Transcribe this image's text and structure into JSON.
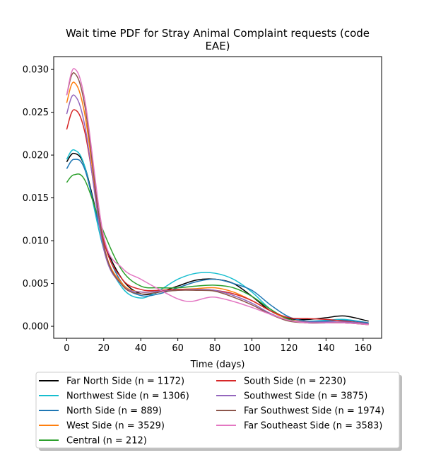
{
  "chart_data": {
    "type": "line",
    "title_lines": [
      "Wait time PDF for Stray Animal Complaint  requests (code",
      "EAE)"
    ],
    "xlabel": "Time (days)",
    "ylabel": "",
    "xlim": [
      -7,
      170
    ],
    "ylim": [
      -0.0014,
      0.0315
    ],
    "xticks": [
      0,
      20,
      40,
      60,
      80,
      100,
      120,
      140,
      160
    ],
    "yticks": [
      0.0,
      0.005,
      0.01,
      0.015,
      0.02,
      0.025,
      0.03
    ],
    "ytick_labels": [
      "0.000",
      "0.005",
      "0.010",
      "0.015",
      "0.020",
      "0.025",
      "0.030"
    ],
    "legend_placement": "below plot, two columns",
    "series": [
      {
        "name": "Far North Side (n = 1172)",
        "color": "#000000",
        "x": [
          0,
          4,
          10,
          20,
          30,
          40,
          50,
          60,
          70,
          80,
          90,
          100,
          110,
          120,
          130,
          140,
          150,
          163
        ],
        "y": [
          0.0192,
          0.0202,
          0.0185,
          0.01,
          0.0055,
          0.0038,
          0.004,
          0.0047,
          0.0054,
          0.0055,
          0.005,
          0.0035,
          0.0018,
          0.0009,
          0.0008,
          0.001,
          0.0012,
          0.0006
        ]
      },
      {
        "name": "Northwest Side (n = 1306)",
        "color": "#17becf",
        "x": [
          0,
          4,
          10,
          20,
          30,
          40,
          50,
          60,
          70,
          80,
          90,
          100,
          110,
          120,
          130,
          140,
          150,
          163
        ],
        "y": [
          0.0195,
          0.0206,
          0.0185,
          0.009,
          0.0045,
          0.0033,
          0.0042,
          0.0055,
          0.0062,
          0.0062,
          0.0055,
          0.004,
          0.002,
          0.0008,
          0.0006,
          0.0007,
          0.0008,
          0.0004
        ]
      },
      {
        "name": "North Side (n = 889)",
        "color": "#1f77b4",
        "x": [
          0,
          4,
          10,
          20,
          30,
          40,
          50,
          60,
          70,
          80,
          90,
          100,
          110,
          120,
          130,
          140,
          150,
          163
        ],
        "y": [
          0.0184,
          0.0195,
          0.0182,
          0.0098,
          0.005,
          0.0036,
          0.0038,
          0.0045,
          0.0052,
          0.0055,
          0.005,
          0.0042,
          0.0025,
          0.0011,
          0.0006,
          0.0006,
          0.0007,
          0.0004
        ]
      },
      {
        "name": "West Side (n = 3529)",
        "color": "#ff7f0e",
        "x": [
          0,
          4,
          10,
          20,
          30,
          40,
          50,
          60,
          70,
          80,
          90,
          100,
          110,
          120,
          130,
          140,
          150,
          163
        ],
        "y": [
          0.0261,
          0.0285,
          0.0245,
          0.0095,
          0.005,
          0.004,
          0.0042,
          0.0043,
          0.0044,
          0.0045,
          0.004,
          0.003,
          0.0018,
          0.0008,
          0.0005,
          0.0004,
          0.0004,
          0.0002
        ]
      },
      {
        "name": "Central (n = 212)",
        "color": "#2ca02c",
        "x": [
          0,
          4,
          10,
          20,
          30,
          40,
          50,
          60,
          70,
          80,
          90,
          100,
          110,
          120,
          130,
          140,
          150,
          163
        ],
        "y": [
          0.0168,
          0.0177,
          0.017,
          0.011,
          0.0065,
          0.0047,
          0.0045,
          0.0045,
          0.0047,
          0.0048,
          0.0045,
          0.0035,
          0.002,
          0.0008,
          0.0004,
          0.0004,
          0.0005,
          0.0003
        ]
      },
      {
        "name": "South Side (n = 2230)",
        "color": "#d62728",
        "x": [
          0,
          4,
          10,
          20,
          30,
          40,
          50,
          60,
          70,
          80,
          90,
          100,
          110,
          120,
          130,
          140,
          150,
          163
        ],
        "y": [
          0.023,
          0.0253,
          0.0225,
          0.01,
          0.0055,
          0.0043,
          0.0042,
          0.0043,
          0.0043,
          0.0042,
          0.0038,
          0.003,
          0.0018,
          0.001,
          0.0009,
          0.0008,
          0.0006,
          0.0003
        ]
      },
      {
        "name": "Southwest Side (n = 3875)",
        "color": "#9467bd",
        "x": [
          0,
          4,
          10,
          20,
          30,
          40,
          50,
          60,
          70,
          80,
          90,
          100,
          110,
          120,
          130,
          140,
          150,
          163
        ],
        "y": [
          0.0248,
          0.027,
          0.0232,
          0.009,
          0.0048,
          0.004,
          0.0041,
          0.0042,
          0.0043,
          0.0042,
          0.0036,
          0.0027,
          0.0015,
          0.0007,
          0.0005,
          0.0005,
          0.0005,
          0.0003
        ]
      },
      {
        "name": "Far Southwest Side (n = 1974)",
        "color": "#8c564b",
        "x": [
          0,
          4,
          10,
          20,
          30,
          40,
          50,
          60,
          70,
          80,
          90,
          100,
          110,
          120,
          130,
          140,
          150,
          163
        ],
        "y": [
          0.027,
          0.0296,
          0.0255,
          0.0095,
          0.0048,
          0.0038,
          0.004,
          0.0042,
          0.0042,
          0.0041,
          0.0034,
          0.0025,
          0.0014,
          0.0006,
          0.0004,
          0.0004,
          0.0004,
          0.0002
        ]
      },
      {
        "name": "Far Southeast Side (n = 3583)",
        "color": "#e377c2",
        "x": [
          0,
          4,
          10,
          20,
          30,
          40,
          50,
          60,
          67,
          75,
          80,
          90,
          100,
          110,
          120,
          130,
          140,
          150,
          163
        ],
        "y": [
          0.027,
          0.0301,
          0.0262,
          0.0105,
          0.0068,
          0.0055,
          0.0043,
          0.0032,
          0.0029,
          0.0033,
          0.0034,
          0.0029,
          0.0022,
          0.0014,
          0.0007,
          0.0004,
          0.0004,
          0.0004,
          0.0002
        ]
      }
    ]
  }
}
